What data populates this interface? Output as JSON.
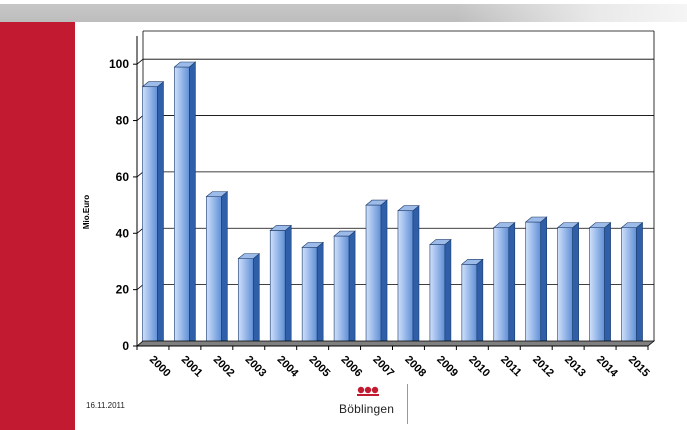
{
  "footer": {
    "date": "16.11.2011",
    "logo_text": "Böblingen"
  },
  "colors": {
    "accent_red": "#c21a30",
    "bar_front_light": "#cfe0fb",
    "bar_front_dark": "#5f8fd6",
    "bar_side": "#2f5fa8",
    "bar_top": "#9dbbe9"
  },
  "chart_data": {
    "type": "bar",
    "style": "3d-column",
    "categories": [
      "2000",
      "2001",
      "2002",
      "2003",
      "2004",
      "2005",
      "2006",
      "2007",
      "2008",
      "2009",
      "2010",
      "2011",
      "2012",
      "2013",
      "2014",
      "2015"
    ],
    "values": [
      92,
      99,
      53,
      31,
      41,
      35,
      39,
      50,
      48,
      36,
      29,
      42,
      44,
      42,
      42,
      42
    ],
    "ylabel": "Mio.Euro",
    "yticks": [
      "0",
      "20",
      "40",
      "60",
      "80",
      "100"
    ],
    "ylim": [
      0,
      110
    ],
    "grid": true
  }
}
